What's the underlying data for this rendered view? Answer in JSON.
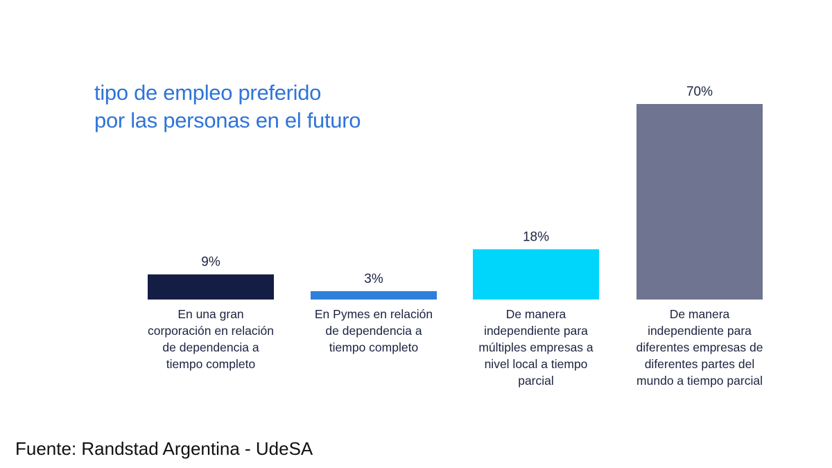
{
  "source_note": "Fuente: Randstad Argentina - UdeSA",
  "chart_data": {
    "type": "bar",
    "title_lines": [
      "tipo de empleo preferido",
      "por las personas en el futuro"
    ],
    "categories": [
      [
        "En una gran",
        "corporación en relación",
        "de dependencia a",
        "tiempo completo"
      ],
      [
        "En Pymes en relación",
        "de dependencia a",
        "tiempo completo"
      ],
      [
        "De manera",
        "independiente para",
        "múltiples empresas a",
        "nivel local a tiempo",
        "parcial"
      ],
      [
        "De manera",
        "independiente para",
        "diferentes empresas de",
        "diferentes partes del",
        "mundo a tiempo parcial"
      ]
    ],
    "values": [
      9,
      3,
      18,
      70
    ],
    "value_labels": [
      "9%",
      "3%",
      "18%",
      "70%"
    ],
    "colors": [
      "#141d44",
      "#2f7fd9",
      "#00d5fb",
      "#6f7590"
    ],
    "ylim": [
      0,
      70
    ],
    "grid": false,
    "legend": "none"
  }
}
